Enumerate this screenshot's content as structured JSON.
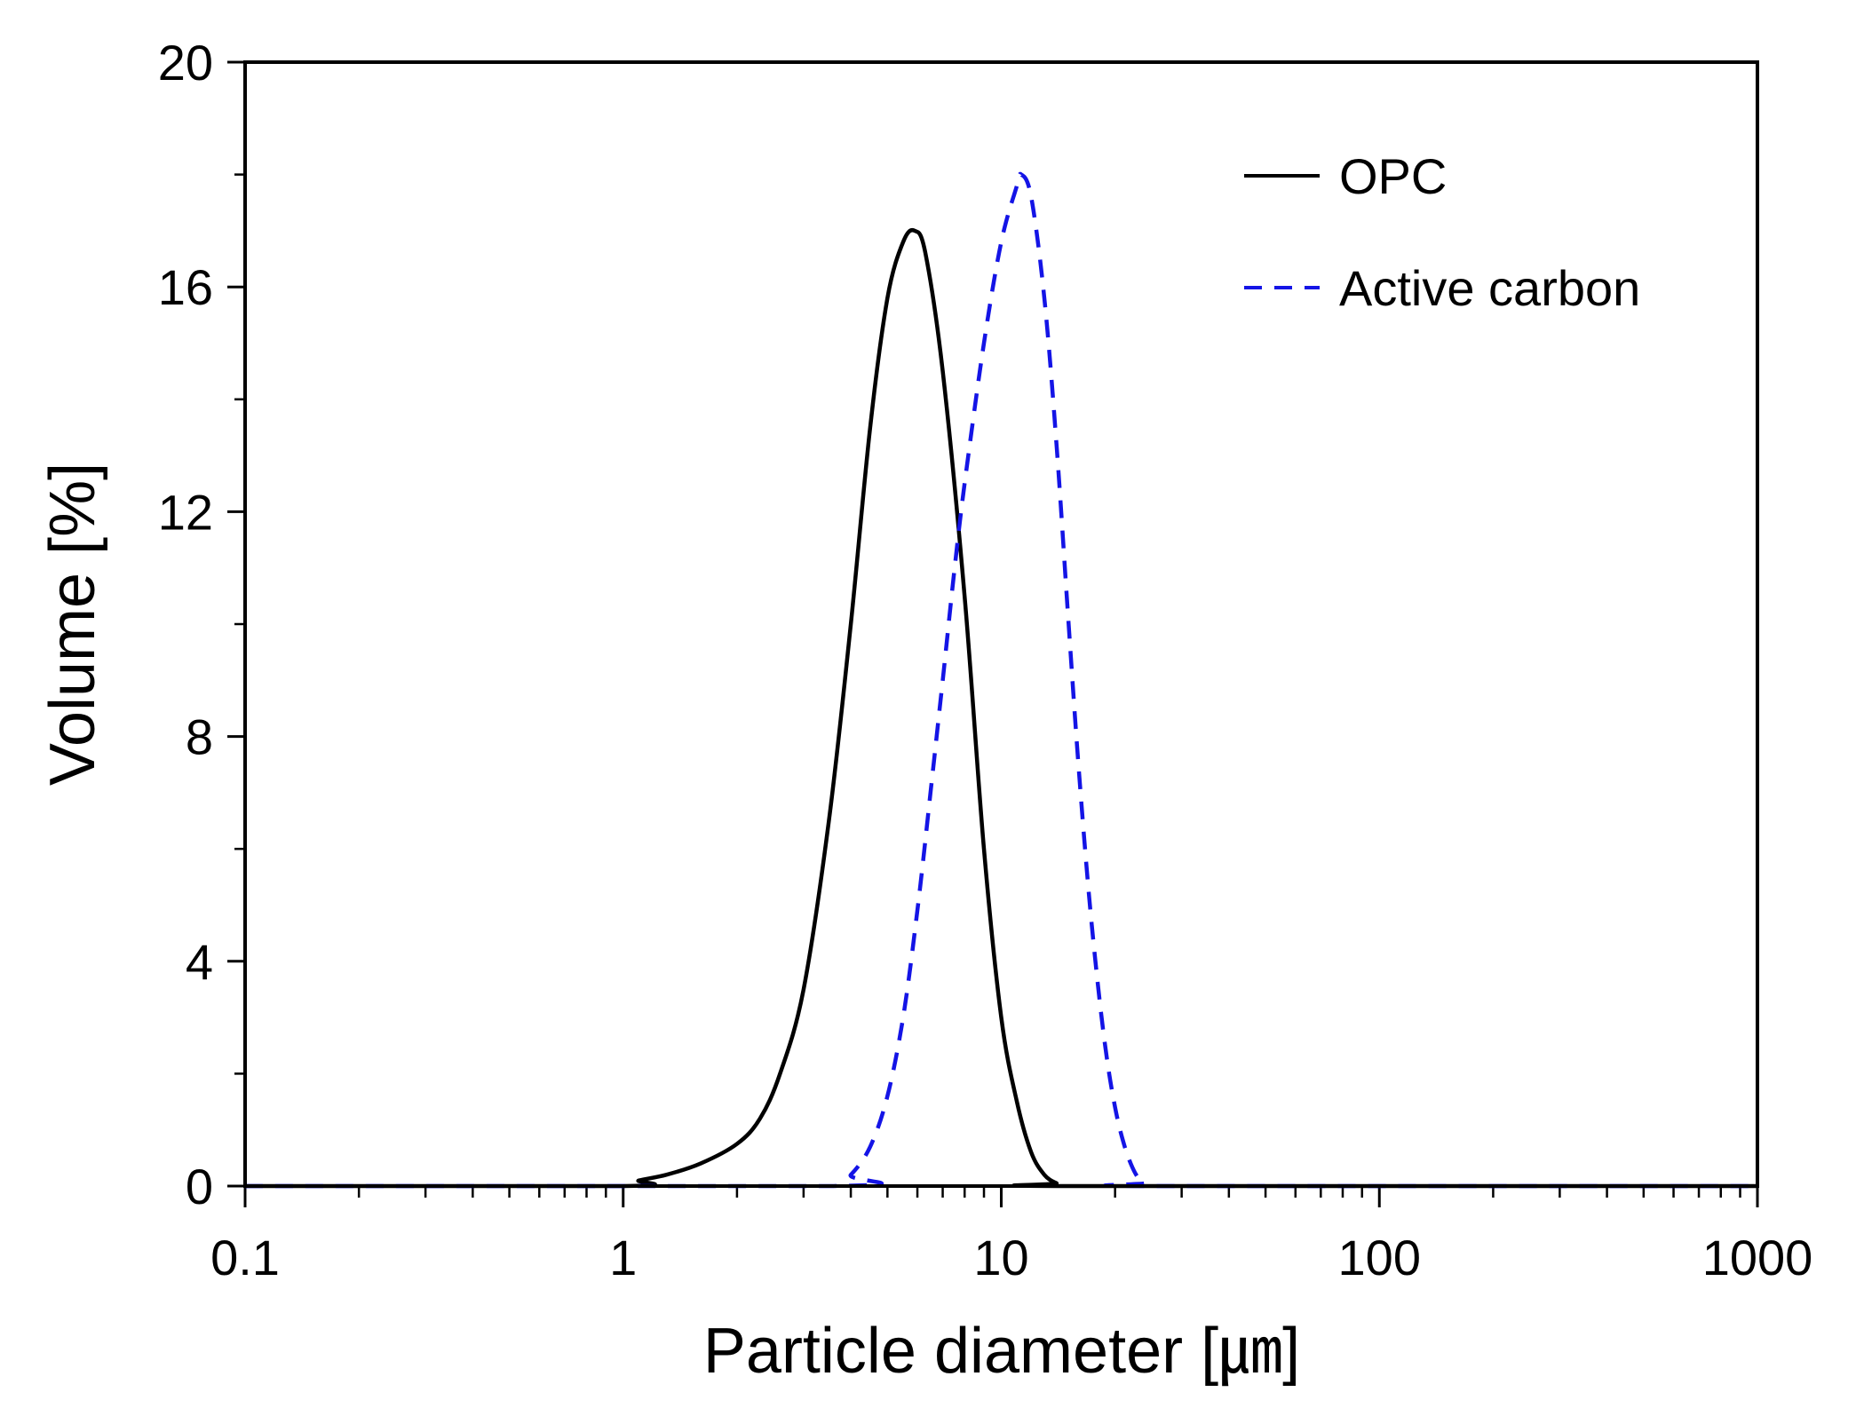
{
  "chart_data": {
    "type": "line",
    "title": "",
    "xlabel": "Particle diameter [㎛]",
    "ylabel": "Volume [%]",
    "xscale": "log",
    "xlim": [
      0.1,
      1000
    ],
    "ylim": [
      0,
      20
    ],
    "x_ticks": [
      {
        "value": 0.1,
        "label": "0.1"
      },
      {
        "value": 1,
        "label": "1"
      },
      {
        "value": 10,
        "label": "10"
      },
      {
        "value": 100,
        "label": "100"
      },
      {
        "value": 1000,
        "label": "1000"
      }
    ],
    "y_ticks": [
      {
        "value": 0,
        "label": "0"
      },
      {
        "value": 4,
        "label": "4"
      },
      {
        "value": 8,
        "label": "8"
      },
      {
        "value": 12,
        "label": "12"
      },
      {
        "value": 16,
        "label": "16"
      },
      {
        "value": 20,
        "label": "20"
      }
    ],
    "y_minor_step": 2,
    "grid": false,
    "legend_position": "top-right",
    "series": [
      {
        "name": "OPC",
        "color": "#000000",
        "style": "solid",
        "points": [
          [
            0.1,
            0
          ],
          [
            1.0,
            0
          ],
          [
            1.1,
            0.1
          ],
          [
            1.3,
            0.2
          ],
          [
            1.6,
            0.4
          ],
          [
            2.0,
            0.75
          ],
          [
            2.3,
            1.2
          ],
          [
            2.6,
            2.0
          ],
          [
            3.0,
            3.5
          ],
          [
            3.5,
            6.5
          ],
          [
            4.0,
            10.0
          ],
          [
            4.5,
            13.5
          ],
          [
            5.0,
            15.8
          ],
          [
            5.5,
            16.8
          ],
          [
            5.9,
            17.0
          ],
          [
            6.3,
            16.6
          ],
          [
            7.0,
            14.5
          ],
          [
            8.0,
            10.5
          ],
          [
            9.0,
            6.0
          ],
          [
            10.0,
            3.0
          ],
          [
            11.0,
            1.5
          ],
          [
            12.0,
            0.6
          ],
          [
            13.0,
            0.2
          ],
          [
            14.0,
            0.05
          ],
          [
            15.0,
            0
          ],
          [
            1000,
            0
          ]
        ]
      },
      {
        "name": "Active carbon",
        "color": "#1414e6",
        "style": "dashed",
        "points": [
          [
            0.1,
            0
          ],
          [
            3.6,
            0
          ],
          [
            4.0,
            0.2
          ],
          [
            4.5,
            0.7
          ],
          [
            5.0,
            1.6
          ],
          [
            5.5,
            3.0
          ],
          [
            6.0,
            4.9
          ],
          [
            6.5,
            7.0
          ],
          [
            7.0,
            9.0
          ],
          [
            7.5,
            10.9
          ],
          [
            8.0,
            12.5
          ],
          [
            9.0,
            15.0
          ],
          [
            10.0,
            16.8
          ],
          [
            11.0,
            17.8
          ],
          [
            11.3,
            18.0
          ],
          [
            12.0,
            17.6
          ],
          [
            13.0,
            15.8
          ],
          [
            14.0,
            13.2
          ],
          [
            15.0,
            10.2
          ],
          [
            16.0,
            7.5
          ],
          [
            17.0,
            5.3
          ],
          [
            18.0,
            3.6
          ],
          [
            19.0,
            2.3
          ],
          [
            20.0,
            1.4
          ],
          [
            21.0,
            0.8
          ],
          [
            22.0,
            0.4
          ],
          [
            23.0,
            0.15
          ],
          [
            24.0,
            0.05
          ],
          [
            25.0,
            0
          ],
          [
            1000,
            0
          ]
        ]
      }
    ]
  }
}
